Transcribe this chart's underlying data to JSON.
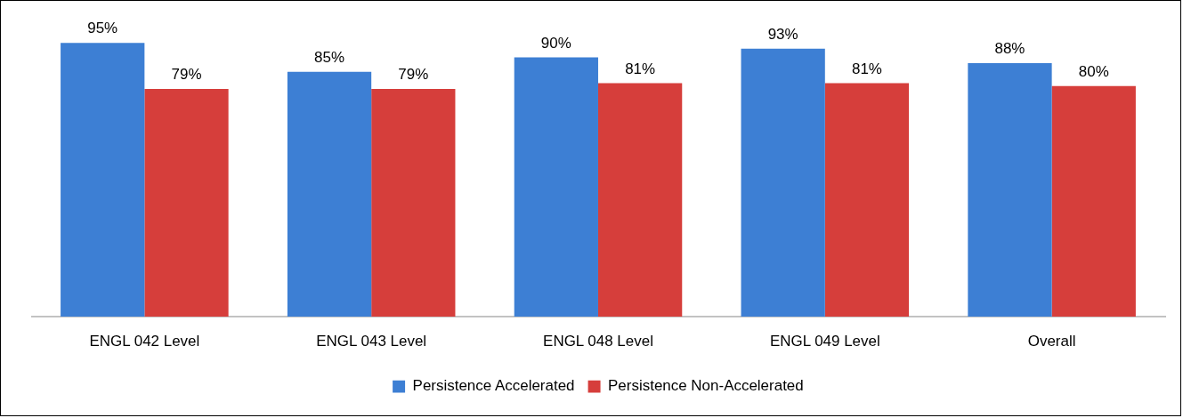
{
  "chart_data": {
    "type": "bar",
    "categories": [
      "ENGL 042 Level",
      "ENGL 043 Level",
      "ENGL 048 Level",
      "ENGL 049 Level",
      "Overall"
    ],
    "series": [
      {
        "name": "Persistence Accelerated",
        "color": "#3d7fd4",
        "values": [
          95,
          85,
          90,
          93,
          88
        ],
        "value_labels": [
          "95%",
          "85%",
          "90%",
          "93%",
          "88%"
        ]
      },
      {
        "name": "Persistence Non-Accelerated",
        "color": "#d63e3b",
        "values": [
          79,
          79,
          81,
          81,
          80
        ],
        "value_labels": [
          "79%",
          "79%",
          "81%",
          "81%",
          "80%"
        ]
      }
    ],
    "legend": "bottom"
  }
}
